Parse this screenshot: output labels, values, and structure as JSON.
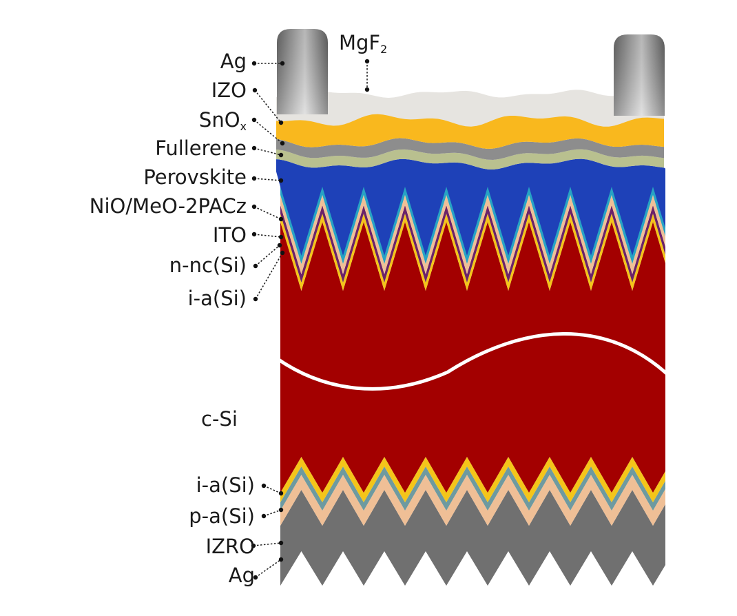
{
  "colors": {
    "ag": "#7a7a7a",
    "mgf2": "#e6e4e0",
    "izo": "#f9b81e",
    "sno": "#8d8d8d",
    "fullerene": "#b9c08f",
    "perovskite": "#1e41b8",
    "nio": "#27a3c4",
    "ito": "#efbf96",
    "nnc": "#6b2269",
    "ia": "#f4c51a",
    "csi": "#a30000",
    "pa": "#6e9aa0",
    "izro": "#efbf96",
    "ag_bottom": "#707070",
    "wave": "#ffffff"
  },
  "labels": {
    "mgf2": {
      "base": "MgF",
      "sub": "2"
    },
    "ag_top": "Ag",
    "izo": "IZO",
    "snox": {
      "base": "SnO",
      "sub": "x"
    },
    "fullerene": "Fullerene",
    "perovskite": "Perovskite",
    "nio": "NiO/MeO-2PACz",
    "ito": "ITO",
    "nnc": "n-nc(Si)",
    "ia_top": "i-a(Si)",
    "csi": "c-Si",
    "ia_bottom": "i-a(Si)",
    "pa": "p-a(Si)",
    "izro": "IZRO",
    "ag_bottom": "Ag"
  }
}
